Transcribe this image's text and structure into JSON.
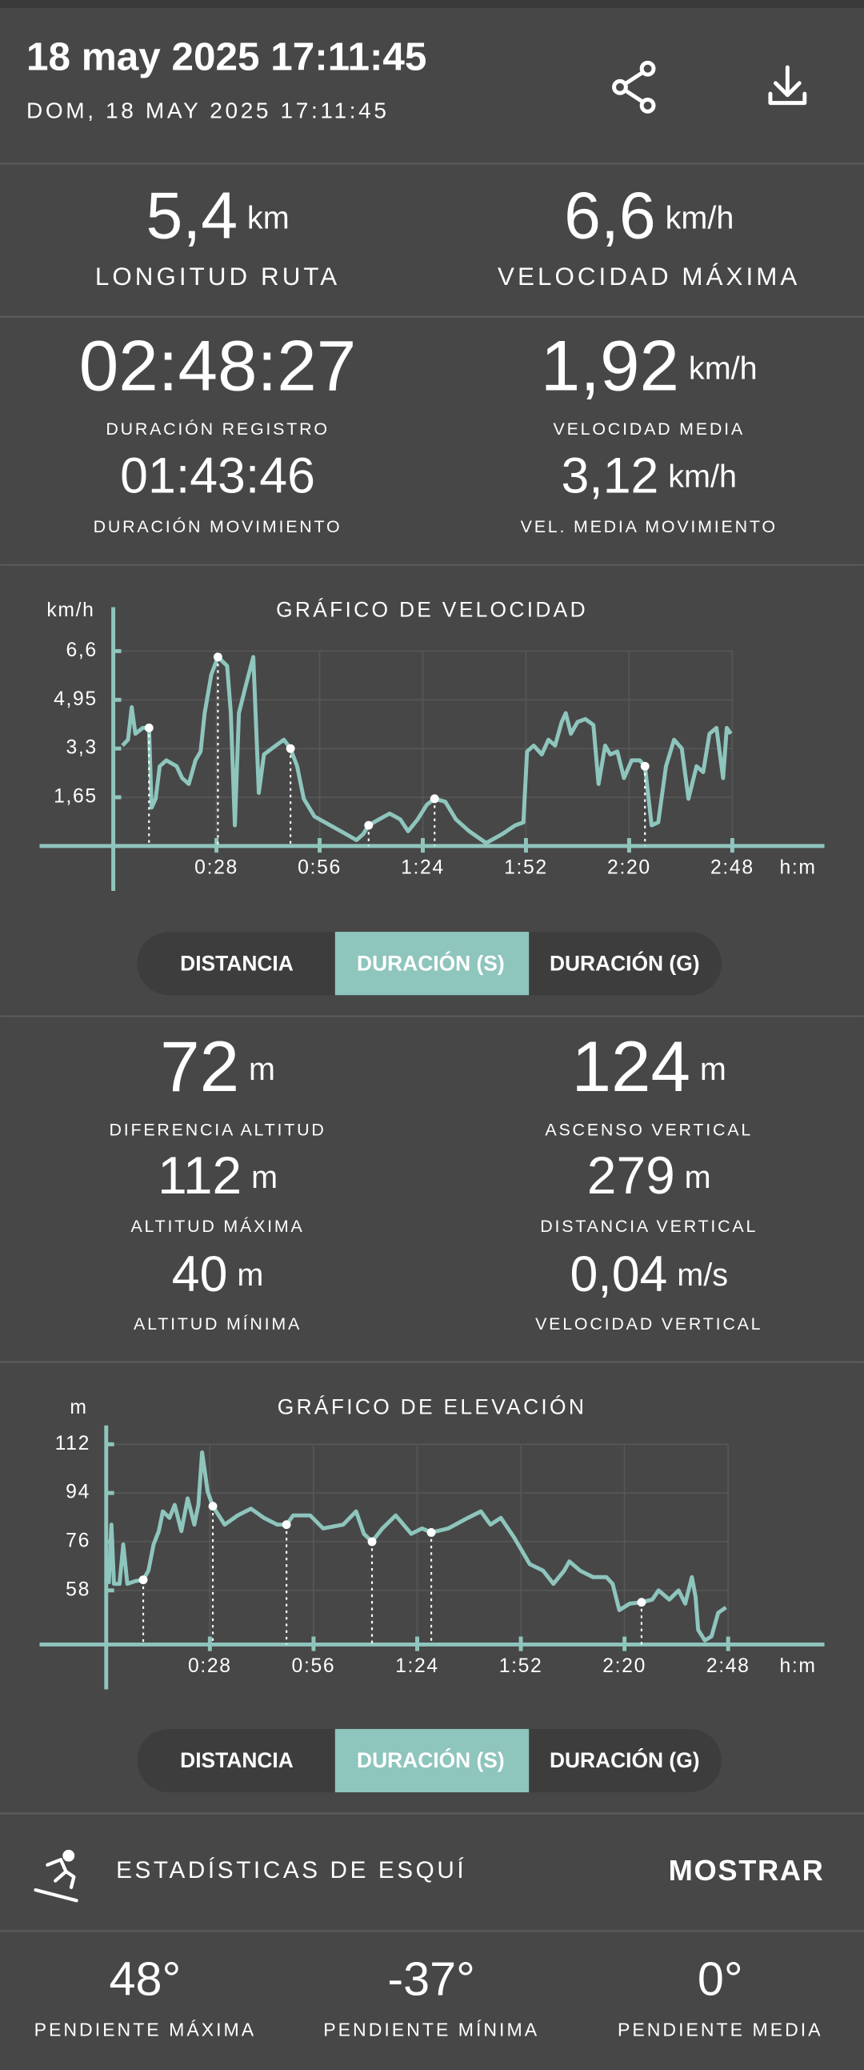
{
  "header": {
    "title": "18 may 2025 17:11:45",
    "subtitle": "DOM, 18 MAY 2025 17:11:45"
  },
  "summary": [
    {
      "value": "5,4",
      "unit": "km",
      "label": "LONGITUD RUTA"
    },
    {
      "value": "6,6",
      "unit": "km/h",
      "label": "VELOCIDAD MÁXIMA"
    }
  ],
  "durations": [
    {
      "value": "02:48:27",
      "label": "DURACIÓN REGISTRO"
    },
    {
      "value": "1,92",
      "unit": "km/h",
      "label": "VELOCIDAD MEDIA"
    },
    {
      "value": "01:43:46",
      "label": "DURACIÓN MOVIMIENTO"
    },
    {
      "value": "3,12",
      "unit": "km/h",
      "label": "VEL. MEDIA MOVIMIENTO"
    }
  ],
  "altitude": [
    {
      "value": "72",
      "unit": "m",
      "label": "DIFERENCIA ALTITUD"
    },
    {
      "value": "124",
      "unit": "m",
      "label": "ASCENSO VERTICAL"
    },
    {
      "value": "112",
      "unit": "m",
      "label": "ALTITUD MÁXIMA"
    },
    {
      "value": "279",
      "unit": "m",
      "label": "DISTANCIA VERTICAL"
    },
    {
      "value": "40",
      "unit": "m",
      "label": "ALTITUD MÍNIMA"
    },
    {
      "value": "0,04",
      "unit": "m/s",
      "label": "VELOCIDAD VERTICAL"
    }
  ],
  "chart_data": [
    {
      "type": "line",
      "title": "GRÁFICO DE VELOCIDAD",
      "y_label": "km/h",
      "x_label": "h:m",
      "color": "#8ec5bd",
      "grid": true,
      "xlim": [
        -20,
        193
      ],
      "ylim": [
        0,
        8
      ],
      "xticks": [
        {
          "value": 28,
          "label": "0:28"
        },
        {
          "value": 56,
          "label": "0:56"
        },
        {
          "value": 84,
          "label": "1:24"
        },
        {
          "value": 112,
          "label": "1:52"
        },
        {
          "value": 140,
          "label": "2:20"
        },
        {
          "value": 168,
          "label": "2:48"
        }
      ],
      "yticks": [
        {
          "value": 1.65,
          "label": "1,65"
        },
        {
          "value": 3.3,
          "label": "3,3"
        },
        {
          "value": 4.95,
          "label": "4,95"
        },
        {
          "value": 6.6,
          "label": "6,6"
        }
      ],
      "x": [
        2.5,
        4,
        5,
        6,
        8,
        9.7,
        10.4,
        11.5,
        12.6,
        14.4,
        17.2,
        18.7,
        20.5,
        22.3,
        23.7,
        24.8,
        26.6,
        28.4,
        30.9,
        31.9,
        33,
        34.1,
        35.9,
        38,
        39.5,
        40.9,
        44.1,
        46.3,
        48.1,
        49.9,
        51.7,
        54.6,
        58.9,
        63.2,
        66,
        67.8,
        69.3,
        72.1,
        75,
        77.9,
        80,
        82.6,
        85.1,
        87.2,
        90.1,
        93,
        96.6,
        101.2,
        105.5,
        109.1,
        111.3,
        112.3,
        114.1,
        116.3,
        118.1,
        119.9,
        121.7,
        122.8,
        124.2,
        126,
        128.1,
        130.3,
        131.7,
        133.5,
        134.9,
        136.8,
        138.6,
        140.7,
        142.9,
        144.3,
        146.1,
        147.9,
        150,
        152.2,
        154.3,
        156.1,
        158.3,
        160.1,
        161.8,
        163.7,
        165.5,
        166.5,
        167.6
      ],
      "values": [
        3.4,
        3.6,
        4.7,
        3.8,
        4.0,
        4.0,
        1.3,
        1.6,
        2.7,
        2.9,
        2.7,
        2.3,
        2.1,
        2.9,
        3.2,
        4.5,
        5.8,
        6.4,
        6.1,
        4.5,
        0.7,
        4.5,
        5.4,
        6.4,
        1.8,
        3.1,
        3.4,
        3.6,
        3.3,
        2.7,
        1.6,
        1.0,
        0.7,
        0.4,
        0.2,
        0.4,
        0.7,
        0.9,
        1.1,
        0.9,
        0.5,
        0.9,
        1.4,
        1.6,
        1.5,
        0.9,
        0.5,
        0.1,
        0.4,
        0.7,
        0.8,
        3.2,
        3.4,
        3.1,
        3.6,
        3.4,
        4.2,
        4.5,
        3.8,
        4.2,
        4.3,
        4.1,
        2.1,
        3.4,
        3.1,
        3.2,
        2.3,
        2.9,
        2.9,
        2.7,
        0.7,
        0.8,
        2.7,
        3.6,
        3.3,
        1.6,
        2.7,
        2.5,
        3.8,
        4.0,
        2.3,
        4.0,
        3.8
      ],
      "markers": {
        "x": [
          9.7,
          28.4,
          48.1,
          69.3,
          87.2,
          144.3
        ],
        "values": [
          4.0,
          6.4,
          3.3,
          0.7,
          1.6,
          2.7
        ]
      }
    },
    {
      "type": "line",
      "title": "GRÁFICO DE ELEVACIÓN",
      "y_label": "m",
      "x_label": "h:m",
      "color": "#8ec5bd",
      "grid": true,
      "xlim": [
        -18,
        194
      ],
      "ylim": [
        38,
        118
      ],
      "xticks": [
        {
          "value": 28,
          "label": "0:28"
        },
        {
          "value": 56,
          "label": "0:56"
        },
        {
          "value": 84,
          "label": "1:24"
        },
        {
          "value": 112,
          "label": "1:52"
        },
        {
          "value": 140,
          "label": "2:20"
        },
        {
          "value": 168,
          "label": "2:48"
        }
      ],
      "yticks": [
        58,
        76,
        94,
        112
      ],
      "x": [
        0.7,
        1.4,
        2.1,
        3.6,
        4.6,
        5.7,
        7.8,
        10,
        11.4,
        12.8,
        14.2,
        15.3,
        17.1,
        18.5,
        20.3,
        22,
        23.8,
        24.9,
        25.9,
        27.4,
        28.8,
        32,
        35.5,
        39.1,
        42.6,
        46.2,
        48.7,
        50.5,
        55.1,
        58.6,
        64,
        67.5,
        69.6,
        71.8,
        74.6,
        78.2,
        82.4,
        85.3,
        87.8,
        92.4,
        97.7,
        101.2,
        103.8,
        106.6,
        110.2,
        114.4,
        118,
        120.8,
        123.7,
        125.1,
        128,
        131.5,
        135.1,
        136.8,
        138.6,
        141.4,
        144.6,
        147.5,
        149.2,
        152.1,
        154.6,
        156.4,
        158.2,
        159.2,
        159.9,
        161.7,
        163.5,
        165.3,
        167.4
      ],
      "values": [
        60.4,
        82.3,
        60.4,
        60.4,
        75,
        60.4,
        61.4,
        61.9,
        65.3,
        75,
        79.9,
        87.2,
        84.8,
        89.6,
        79.9,
        92,
        82.3,
        89.6,
        109,
        94.5,
        89.1,
        82.3,
        85.7,
        88.2,
        84.8,
        82.3,
        82.3,
        85.7,
        85.7,
        80.9,
        82.3,
        87.2,
        78.9,
        76,
        80.9,
        85.7,
        78.9,
        80.9,
        79.4,
        80.9,
        84.8,
        87.2,
        82.3,
        84.8,
        77.5,
        67.7,
        65.3,
        60.4,
        65.3,
        68.7,
        65.3,
        62.9,
        62.9,
        60.4,
        50.7,
        53.1,
        53.6,
        54.6,
        58,
        54.6,
        58,
        53.1,
        62.9,
        55.6,
        43.4,
        39.5,
        41,
        49.7,
        51.7
      ],
      "markers": {
        "x": [
          10,
          28.8,
          48.7,
          71.8,
          87.8,
          144.6
        ],
        "values": [
          61.9,
          89.1,
          82.3,
          76,
          79.4,
          53.6
        ]
      }
    }
  ],
  "speed_tabs": {
    "items": [
      "DISTANCIA",
      "DURACIÓN (S)",
      "DURACIÓN (G)"
    ],
    "selected": 1
  },
  "elevation_tabs": {
    "items": [
      "DISTANCIA",
      "DURACIÓN (S)",
      "DURACIÓN (G)"
    ],
    "selected": 1
  },
  "ski": {
    "title": "ESTADÍSTICAS DE ESQUÍ",
    "action": "MOSTRAR"
  },
  "slopes": [
    {
      "value": "48°",
      "label": "PENDIENTE MÁXIMA"
    },
    {
      "value": "-37°",
      "label": "PENDIENTE MÍNIMA"
    },
    {
      "value": "0°",
      "label": "PENDIENTE MEDIA"
    }
  ]
}
